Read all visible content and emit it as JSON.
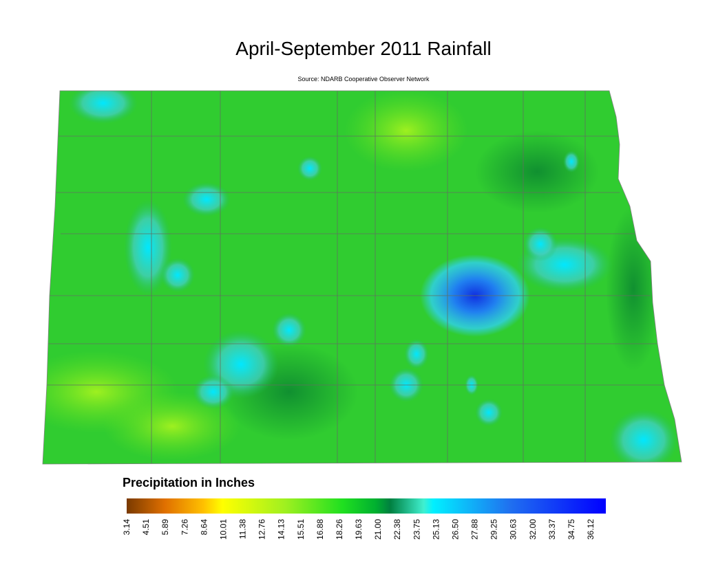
{
  "title": "April-September 2011 Rainfall",
  "source": "Source: NDARB Cooperative Observer Network",
  "legend": {
    "title": "Precipitation in Inches",
    "labels": [
      "3.14",
      "4.51",
      "5.89",
      "7.26",
      "8.64",
      "10.01",
      "11.38",
      "12.76",
      "14.13",
      "15.51",
      "16.88",
      "18.26",
      "19.63",
      "21.00",
      "22.38",
      "23.75",
      "25.13",
      "26.50",
      "27.88",
      "29.25",
      "30.63",
      "32.00",
      "33.37",
      "34.75",
      "36.12"
    ]
  }
}
